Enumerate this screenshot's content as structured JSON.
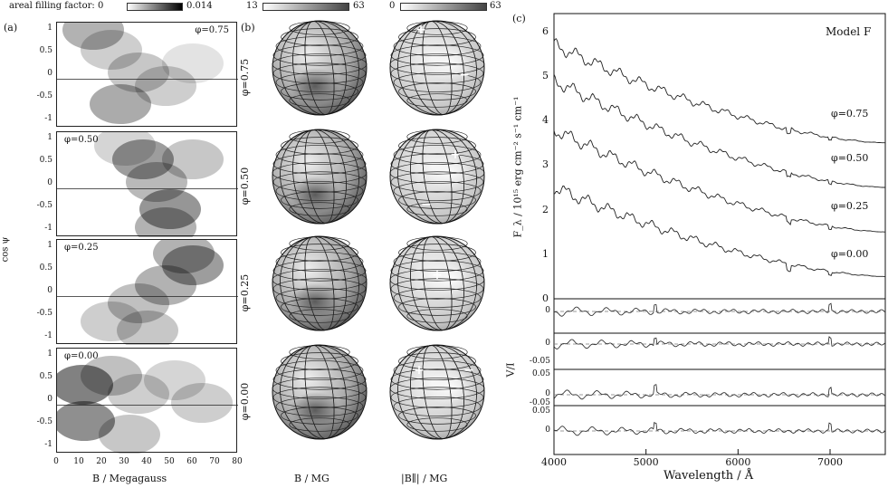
{
  "panel_a": {
    "tag": "(a)",
    "colorbar_label": "areal filling factor:",
    "colorbar_min": "0",
    "colorbar_max": "0.014",
    "phases": [
      "φ=0.75",
      "φ=0.50",
      "φ=0.25",
      "φ=0.00"
    ],
    "y_ticks": [
      "1",
      "0.5",
      "0",
      "-0.5",
      "-1"
    ],
    "x_ticks": [
      "0",
      "10",
      "20",
      "30",
      "40",
      "50",
      "60",
      "70",
      "80"
    ],
    "ylabel": "cos ψ",
    "xlabel": "B / Megagauss"
  },
  "panel_b": {
    "tag": "(b)",
    "bar1_min": "13",
    "bar1_max": "63",
    "bar2_min": "0",
    "bar2_max": "63",
    "row_labels": [
      "φ=0.75",
      "φ=0.50",
      "φ=0.25",
      "φ=0.00"
    ],
    "col1_label": "B / MG",
    "col2_label": "|B∥| / MG"
  },
  "panel_c": {
    "tag": "(c)",
    "model_label": "Model F",
    "ylabel": "F_λ / 10¹⁵ erg cm⁻² s⁻¹ cm⁻¹",
    "xlabel": "Wavelength / Å",
    "y_ticks": [
      "0",
      "1",
      "2",
      "3",
      "4",
      "5",
      "6"
    ],
    "x_ticks": [
      "4000",
      "5000",
      "6000",
      "7000"
    ],
    "curve_labels": [
      "φ=0.75",
      "φ=0.50",
      "φ=0.25",
      "φ=0.00"
    ],
    "residual_ylabel": "V/I",
    "residual_ticks": [
      [
        "0"
      ],
      [
        "0",
        "-0.05"
      ],
      [
        "0.05",
        "0",
        "-0.05"
      ],
      [
        "0.05",
        "0"
      ]
    ]
  }
}
